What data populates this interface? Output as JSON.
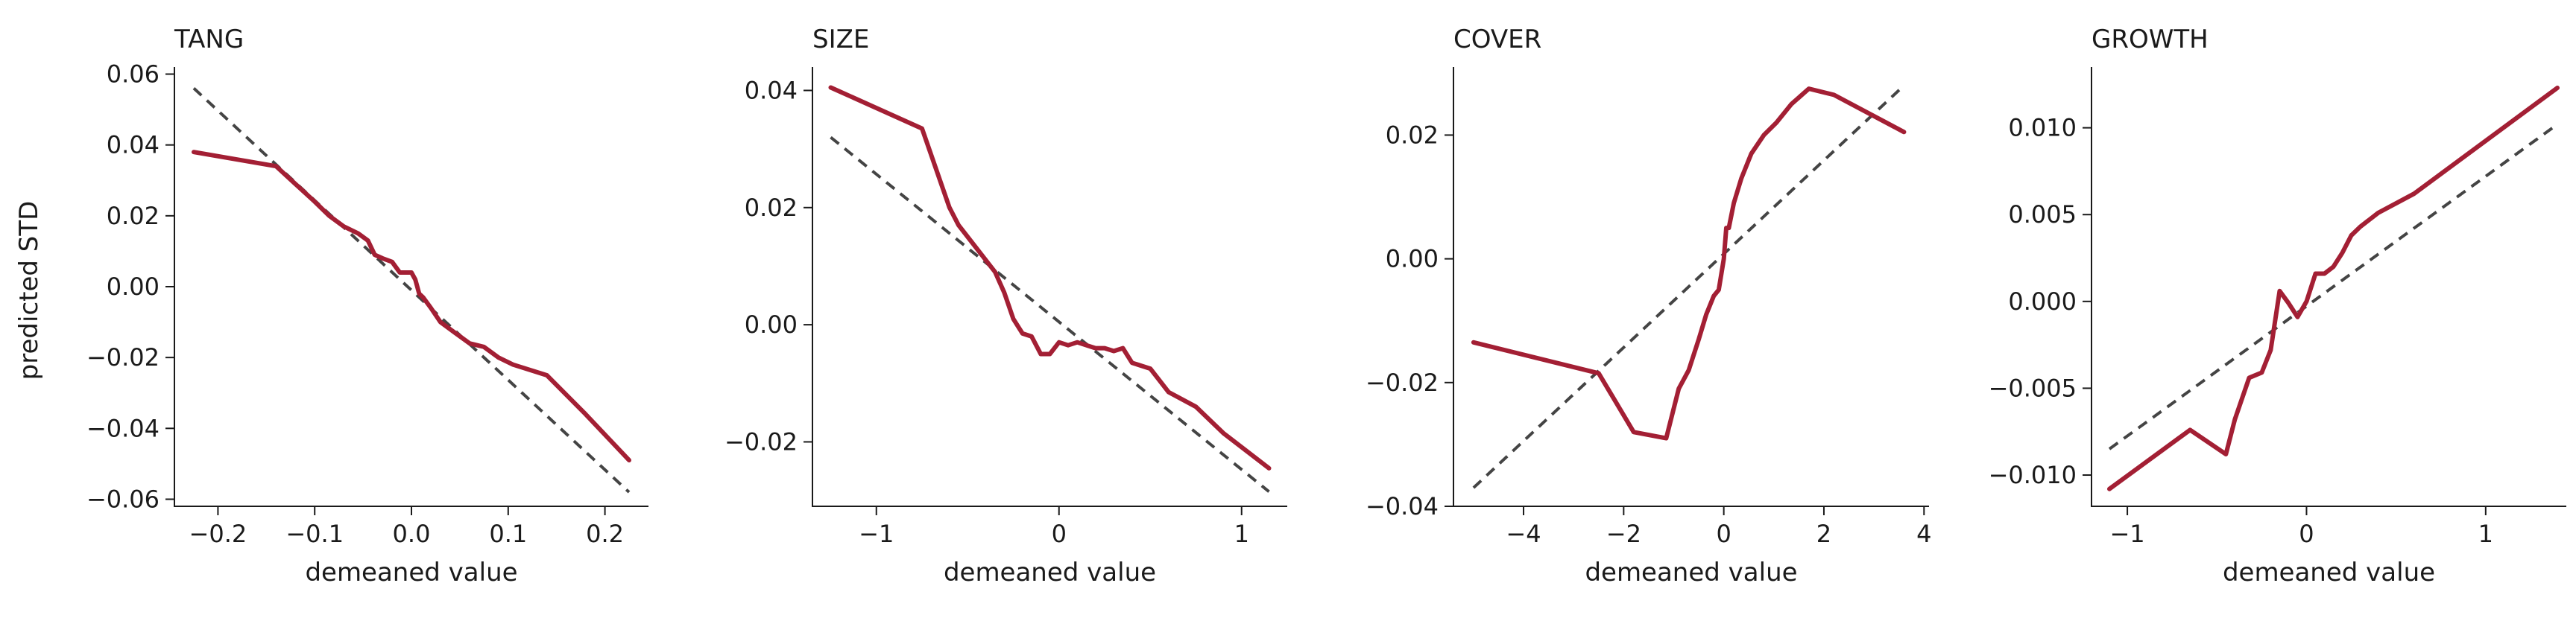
{
  "figure": {
    "shared_ylabel": "predicted STD"
  },
  "colors": {
    "predicted": "#a31f34",
    "reference": "#444444"
  },
  "chart_data": [
    {
      "type": "line",
      "title": "TANG",
      "xlabel": "demeaned value",
      "ylabel": "predicted STD",
      "xlim": [
        -0.245,
        0.245
      ],
      "ylim": [
        -0.062,
        0.062
      ],
      "xticks": [
        -0.2,
        -0.1,
        0.0,
        0.1,
        0.2
      ],
      "xtick_labels": [
        "−0.2",
        "−0.1",
        "0.0",
        "0.1",
        "0.2"
      ],
      "yticks": [
        0.06,
        0.04,
        0.02,
        0.0,
        -0.02,
        -0.04,
        -0.06
      ],
      "ytick_labels": [
        "0.06",
        "0.04",
        "0.02",
        "0.00",
        "−0.02",
        "−0.04",
        "−0.06"
      ],
      "grid": false,
      "series": [
        {
          "style": "solid",
          "color": "#a31f34",
          "x": [
            -0.225,
            -0.14,
            -0.12,
            -0.1,
            -0.085,
            -0.07,
            -0.055,
            -0.045,
            -0.038,
            -0.03,
            -0.02,
            -0.012,
            0.0,
            0.004,
            0.008,
            0.012,
            0.02,
            0.03,
            0.045,
            0.06,
            0.075,
            0.09,
            0.105,
            0.14,
            0.18,
            0.225
          ],
          "y": [
            0.038,
            0.034,
            0.029,
            0.024,
            0.02,
            0.017,
            0.015,
            0.013,
            0.009,
            0.008,
            0.007,
            0.004,
            0.004,
            0.002,
            -0.002,
            -0.003,
            -0.006,
            -0.01,
            -0.013,
            -0.016,
            -0.017,
            -0.02,
            -0.022,
            -0.025,
            -0.036,
            -0.049
          ]
        },
        {
          "style": "dashed",
          "color": "#444444",
          "x": [
            -0.225,
            0.225
          ],
          "y": [
            0.056,
            -0.058
          ]
        }
      ]
    },
    {
      "type": "line",
      "title": "SIZE",
      "xlabel": "demeaned value",
      "ylabel": "",
      "xlim": [
        -1.35,
        1.25
      ],
      "ylim": [
        -0.031,
        0.044
      ],
      "xticks": [
        -1,
        0,
        1
      ],
      "xtick_labels": [
        "−1",
        "0",
        "1"
      ],
      "yticks": [
        0.04,
        0.02,
        0.0,
        -0.02
      ],
      "ytick_labels": [
        "0.04",
        "0.02",
        "0.00",
        "−0.02"
      ],
      "grid": false,
      "series": [
        {
          "style": "solid",
          "color": "#a31f34",
          "x": [
            -1.25,
            -0.75,
            -0.6,
            -0.55,
            -0.45,
            -0.35,
            -0.3,
            -0.25,
            -0.2,
            -0.15,
            -0.1,
            -0.05,
            0.0,
            0.05,
            0.1,
            0.15,
            0.2,
            0.25,
            0.3,
            0.35,
            0.4,
            0.5,
            0.6,
            0.75,
            0.9,
            1.15
          ],
          "y": [
            0.0405,
            0.0335,
            0.02,
            0.017,
            0.013,
            0.009,
            0.0055,
            0.001,
            -0.0015,
            -0.002,
            -0.005,
            -0.005,
            -0.003,
            -0.0035,
            -0.003,
            -0.0035,
            -0.004,
            -0.004,
            -0.0045,
            -0.004,
            -0.0065,
            -0.0075,
            -0.0115,
            -0.014,
            -0.0185,
            -0.0245
          ]
        },
        {
          "style": "dashed",
          "color": "#444444",
          "x": [
            -1.25,
            1.15
          ],
          "y": [
            0.032,
            -0.0285
          ]
        }
      ]
    },
    {
      "type": "line",
      "title": "COVER",
      "xlabel": "demeaned value",
      "ylabel": "",
      "xlim": [
        -5.4,
        4.1
      ],
      "ylim": [
        -0.04,
        0.031
      ],
      "xticks": [
        -4,
        -2,
        0,
        2,
        4
      ],
      "xtick_labels": [
        "−4",
        "−2",
        "0",
        "2",
        "4"
      ],
      "yticks": [
        0.02,
        0.0,
        -0.02,
        -0.04
      ],
      "ytick_labels": [
        "0.02",
        "0.00",
        "−0.02",
        "−0.04"
      ],
      "grid": false,
      "series": [
        {
          "style": "solid",
          "color": "#a31f34",
          "x": [
            -5.0,
            -2.5,
            -1.8,
            -1.15,
            -0.9,
            -0.7,
            -0.5,
            -0.35,
            -0.2,
            -0.1,
            0.0,
            0.05,
            0.1,
            0.2,
            0.35,
            0.55,
            0.8,
            1.05,
            1.35,
            1.7,
            2.2,
            3.6
          ],
          "y": [
            -0.0135,
            -0.0185,
            -0.028,
            -0.029,
            -0.021,
            -0.018,
            -0.013,
            -0.009,
            -0.006,
            -0.005,
            0.0,
            0.005,
            0.005,
            0.009,
            0.013,
            0.017,
            0.02,
            0.022,
            0.025,
            0.0275,
            0.0265,
            0.0205
          ]
        },
        {
          "style": "dashed",
          "color": "#444444",
          "x": [
            -5.0,
            3.6
          ],
          "y": [
            -0.037,
            0.028
          ]
        }
      ]
    },
    {
      "type": "line",
      "title": "GROWTH",
      "xlabel": "demeaned value",
      "ylabel": "",
      "xlim": [
        -1.2,
        1.45
      ],
      "ylim": [
        -0.0118,
        0.0135
      ],
      "xticks": [
        -1,
        0,
        1
      ],
      "xtick_labels": [
        "−1",
        "0",
        "1"
      ],
      "yticks": [
        0.01,
        0.005,
        0.0,
        -0.005,
        -0.01
      ],
      "ytick_labels": [
        "0.010",
        "0.005",
        "0.000",
        "−0.005",
        "−0.010"
      ],
      "grid": false,
      "series": [
        {
          "style": "solid",
          "color": "#a31f34",
          "x": [
            -1.1,
            -0.65,
            -0.45,
            -0.4,
            -0.32,
            -0.25,
            -0.2,
            -0.15,
            -0.1,
            -0.05,
            0.0,
            0.05,
            0.1,
            0.15,
            0.2,
            0.25,
            0.3,
            0.4,
            0.6,
            1.4
          ],
          "y": [
            -0.0108,
            -0.0074,
            -0.0088,
            -0.0068,
            -0.0044,
            -0.0041,
            -0.0028,
            0.0006,
            -0.0001,
            -0.0009,
            0.0,
            0.0016,
            0.0016,
            0.002,
            0.0028,
            0.0038,
            0.0043,
            0.0051,
            0.0062,
            0.0123
          ]
        },
        {
          "style": "dashed",
          "color": "#444444",
          "x": [
            -1.1,
            1.4
          ],
          "y": [
            -0.0085,
            0.0102
          ]
        }
      ]
    }
  ]
}
